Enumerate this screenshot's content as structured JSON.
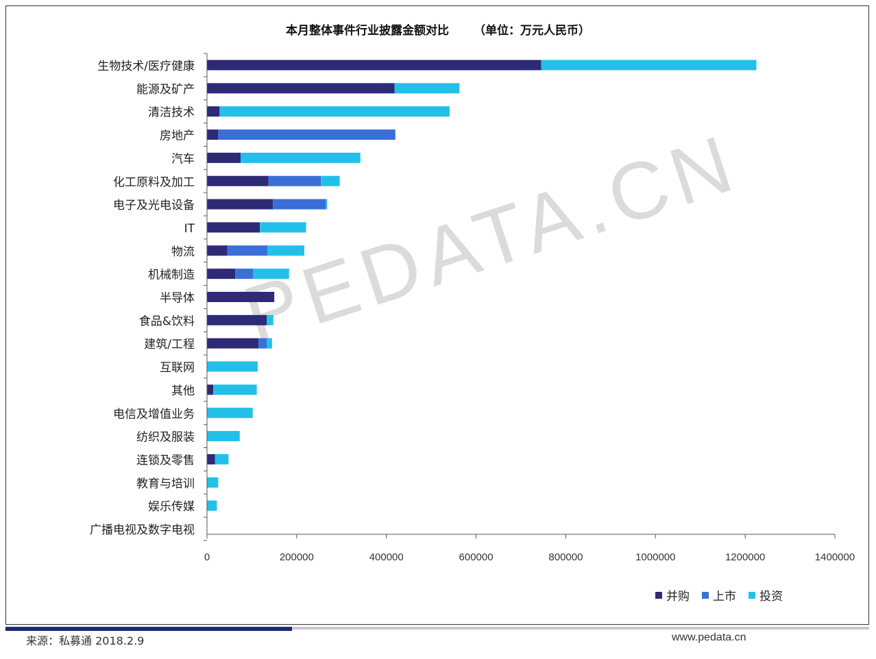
{
  "header": {
    "title": "本月整体事件行业披露金额对比",
    "unit": "（单位：万元人民币）"
  },
  "watermark": "PEDATA.CN",
  "footer": {
    "source": "来源：私募通  2018.2.9",
    "site": "www.pedata.cn"
  },
  "colors": {
    "series_0": "#2e2a75",
    "series_1": "#3a6fd8",
    "series_2": "#22c0e8",
    "axis": "#555555"
  },
  "chart_data": {
    "type": "bar",
    "orientation": "horizontal",
    "stacked": true,
    "title": "本月整体事件行业披露金额对比",
    "categories": [
      "生物技术/医疗健康",
      "能源及矿产",
      "清洁技术",
      "房地产",
      "汽车",
      "化工原料及加工",
      "电子及光电设备",
      "IT",
      "物流",
      "机械制造",
      "半导体",
      "食品&饮料",
      "建筑/工程",
      "互联网",
      "其他",
      "电信及增值业务",
      "纺织及服装",
      "连锁及零售",
      "教育与培训",
      "娱乐传媒",
      "广播电视及数字电视"
    ],
    "series": [
      {
        "name": "并购",
        "values": [
          745000,
          418000,
          28000,
          25000,
          75000,
          137000,
          147000,
          118000,
          45000,
          63000,
          150000,
          133000,
          115000,
          0,
          14000,
          0,
          0,
          18000,
          0,
          0,
          0
        ]
      },
      {
        "name": "上市",
        "values": [
          0,
          0,
          0,
          395000,
          0,
          117000,
          118000,
          0,
          90000,
          40000,
          0,
          0,
          18000,
          0,
          0,
          0,
          0,
          0,
          0,
          0,
          0
        ]
      },
      {
        "name": "投资",
        "values": [
          480000,
          145000,
          513000,
          0,
          267000,
          42000,
          3000,
          103000,
          82000,
          80000,
          0,
          15000,
          12000,
          113000,
          97000,
          102000,
          73000,
          30000,
          25000,
          22000,
          0
        ]
      }
    ],
    "xlim": [
      0,
      1400000
    ],
    "xticks": [
      "0",
      "200000",
      "400000",
      "600000",
      "800000",
      "1000000",
      "1200000",
      "1400000"
    ],
    "legend_position": "bottom-right"
  }
}
